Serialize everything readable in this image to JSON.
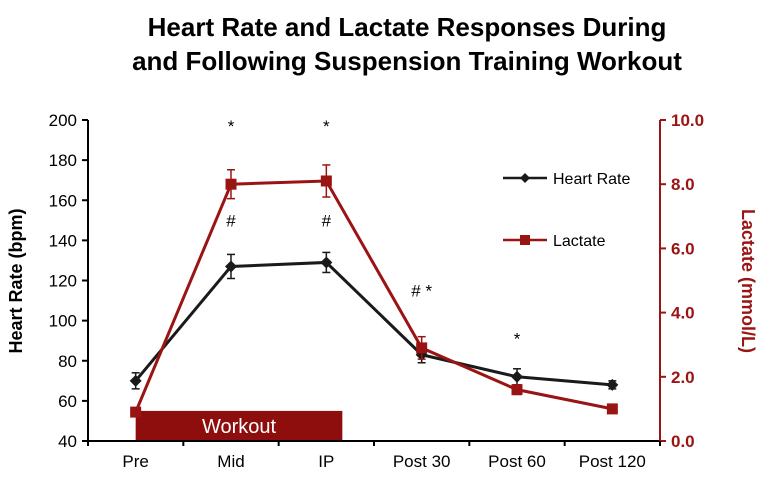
{
  "title": {
    "line1": "Heart Rate and Lactate Responses During",
    "line2": "and Following Suspension Training Workout"
  },
  "chart_data": {
    "type": "line",
    "categories": [
      "Pre",
      "Mid",
      "IP",
      "Post 30",
      "Post 60",
      "Post 120"
    ],
    "series": [
      {
        "name": "Heart Rate",
        "axis": "left",
        "color": "#1a1a1a",
        "marker": "diamond",
        "values": [
          70,
          127,
          129,
          83,
          72,
          68
        ],
        "errors": [
          4,
          6,
          5,
          4,
          4,
          2
        ]
      },
      {
        "name": "Lactate",
        "axis": "right",
        "color": "#9a1414",
        "marker": "square",
        "values": [
          0.9,
          8.0,
          8.1,
          2.9,
          1.6,
          1.0
        ],
        "errors": [
          0.12,
          0.45,
          0.5,
          0.35,
          0.15,
          0.1
        ]
      }
    ],
    "left_axis": {
      "label": "Heart Rate (bpm)",
      "min": 40,
      "max": 200,
      "step": 20,
      "color": "#000000"
    },
    "right_axis": {
      "label": "Lactate (mmol/L)",
      "min": 0,
      "max": 10,
      "step": 2,
      "decimals": 1,
      "color": "#9a1414"
    },
    "annotations": [
      {
        "text": "*",
        "category": 1,
        "hr_y": 194
      },
      {
        "text": "*",
        "category": 2,
        "hr_y": 194
      },
      {
        "text": "#",
        "category": 1,
        "hr_y": 147
      },
      {
        "text": "#",
        "category": 2,
        "hr_y": 147
      },
      {
        "text": "# *",
        "category": 3,
        "hr_y": 112
      },
      {
        "text": "*",
        "category": 4,
        "hr_y": 88
      }
    ],
    "workout_band": {
      "label": "Workout",
      "from_category": 0,
      "to_category": 2,
      "hr_top": 55,
      "color": "#8e0e0e",
      "text_color": "#ffffff"
    },
    "legend": {
      "entries": [
        "Heart Rate",
        "Lactate"
      ],
      "position": "right-inside"
    }
  }
}
